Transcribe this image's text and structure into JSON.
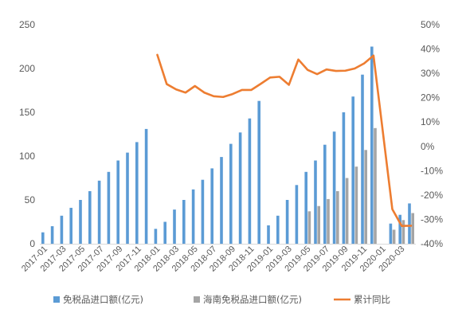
{
  "chart_data": {
    "type": "bar",
    "categories": [
      "2017-01",
      "2017-02",
      "2017-03",
      "2017-04",
      "2017-05",
      "2017-06",
      "2017-07",
      "2017-08",
      "2017-09",
      "2017-10",
      "2017-11",
      "2017-12",
      "2018-01",
      "2018-02",
      "2018-03",
      "2018-04",
      "2018-05",
      "2018-06",
      "2018-07",
      "2018-08",
      "2018-09",
      "2018-10",
      "2018-11",
      "2018-12",
      "2019-01",
      "2019-02",
      "2019-03",
      "2019-04",
      "2019-05",
      "2019-06",
      "2019-07",
      "2019-08",
      "2019-09",
      "2019-10",
      "2019-11",
      "2019-12",
      "2020-01",
      "2020-02",
      "2020-03",
      "2020-04"
    ],
    "series": [
      {
        "name": "免税品进口额(亿元)",
        "type": "bar",
        "axis": "left",
        "color": "#5B9BD5",
        "values": [
          13,
          20,
          32,
          41,
          50,
          60,
          72,
          82,
          95,
          104,
          116,
          131,
          17,
          25,
          39,
          50,
          62,
          73,
          86,
          99,
          114,
          127,
          143,
          163,
          21,
          32,
          50,
          67,
          82,
          95,
          113,
          128,
          150,
          168,
          193,
          225,
          null,
          23,
          33,
          46
        ]
      },
      {
        "name": "海南免税品进口额(亿元)",
        "type": "bar",
        "axis": "left",
        "color": "#A5A5A5",
        "values": [
          null,
          null,
          null,
          null,
          null,
          null,
          null,
          null,
          null,
          null,
          null,
          null,
          null,
          null,
          null,
          null,
          null,
          null,
          null,
          null,
          null,
          null,
          null,
          null,
          null,
          null,
          null,
          null,
          37,
          43,
          51,
          60,
          75,
          88,
          107,
          132,
          null,
          16,
          27,
          35
        ]
      },
      {
        "name": "累计同比",
        "type": "line",
        "axis": "right",
        "color": "#ED7D31",
        "values": [
          null,
          null,
          null,
          null,
          null,
          null,
          null,
          null,
          null,
          null,
          null,
          null,
          37.6,
          25.6,
          23.4,
          22.1,
          24.8,
          22.1,
          20.6,
          20.3,
          21.5,
          23.2,
          23.2,
          25.7,
          28.3,
          28.6,
          25.3,
          35.7,
          31.4,
          29.7,
          31.6,
          31.0,
          31.1,
          32.0,
          34.1,
          37.3,
          null,
          -25.8,
          -32.7,
          -32.6
        ]
      }
    ],
    "y_axis": {
      "min": 0,
      "max": 250,
      "ticks": [
        0,
        50,
        100,
        150,
        200,
        250
      ],
      "tick_labels": [
        "0",
        "50",
        "100",
        "150",
        "200",
        "250"
      ]
    },
    "y2_axis": {
      "min": -40,
      "max": 50,
      "ticks": [
        -40,
        -30,
        -20,
        -10,
        0,
        10,
        20,
        30,
        40,
        50
      ],
      "tick_labels": [
        "-40%",
        "-30%",
        "-20%",
        "-10%",
        "0%",
        "10%",
        "20%",
        "30%",
        "40%",
        "50%"
      ]
    },
    "grid": false,
    "legend": "bottom"
  }
}
